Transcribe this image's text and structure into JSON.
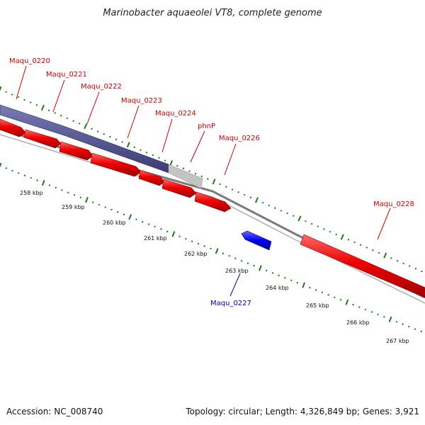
{
  "title": "Marinobacter aquaeolei VT8, complete genome",
  "footer": {
    "accession": "Accession: NC_008740",
    "summary": "Topology: circular; Length: 4,326,849 bp; Genes: 3,921"
  },
  "kbp_labels": [
    "258 kbp",
    "259 kbp",
    "260 kbp",
    "261 kbp",
    "262 kbp",
    "263 kbp",
    "264 kbp",
    "265 kbp",
    "266 kbp",
    "267 kbp"
  ],
  "genes": [
    {
      "name": "Maqu_0220",
      "strand": "+"
    },
    {
      "name": "Maqu_0221",
      "strand": "+"
    },
    {
      "name": "Maqu_0222",
      "strand": "+"
    },
    {
      "name": "Maqu_0223",
      "strand": "+"
    },
    {
      "name": "Maqu_0224",
      "strand": "+"
    },
    {
      "name": "phnP",
      "strand": "+"
    },
    {
      "name": "Maqu_0226",
      "strand": "+"
    },
    {
      "name": "Maqu_0227",
      "strand": "-"
    },
    {
      "name": "Maqu_0228",
      "strand": "+"
    }
  ],
  "colors": {
    "forward_gene": "#ee0000",
    "reverse_gene": "#0000ee",
    "operon": "#4a4a8c",
    "operon_tail": "#c0c0c0",
    "backbone": "#7a7a7a",
    "tick": "#1a7a1a",
    "forward_label": "#cc0000",
    "reverse_label": "#0000bb"
  }
}
